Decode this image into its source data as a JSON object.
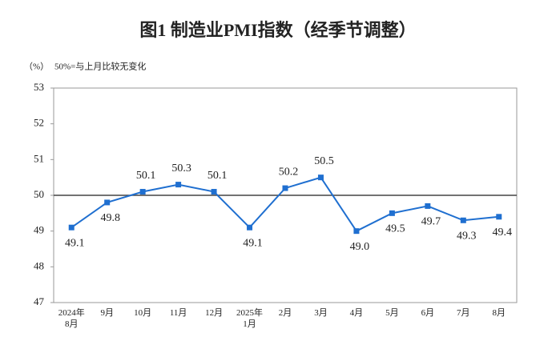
{
  "chart_data": {
    "type": "line",
    "title": "图1  制造业PMI指数（经季节调整）",
    "y_unit": "（%）",
    "note": "50%=与上月比较无变化",
    "categories": [
      "2024年\n8月",
      "9月",
      "10月",
      "11月",
      "12月",
      "2025年\n1月",
      "2月",
      "3月",
      "4月",
      "5月",
      "6月",
      "7月",
      "8月"
    ],
    "series": [
      {
        "name": "制造业PMI",
        "color": "#1f6fd0",
        "values": [
          49.1,
          49.8,
          50.1,
          50.3,
          50.1,
          49.1,
          50.2,
          50.5,
          49.0,
          49.5,
          49.7,
          49.3,
          49.4
        ],
        "value_labels": [
          "49.1",
          "49.8",
          "50.1",
          "50.3",
          "50.1",
          "49.1",
          "50.2",
          "50.5",
          "49.0",
          "49.5",
          "49.7",
          "49.3",
          "49.4"
        ]
      }
    ],
    "ylim": [
      47,
      53
    ],
    "yticks": [
      47,
      48,
      49,
      50,
      51,
      52,
      53
    ],
    "reference_line": 50
  }
}
